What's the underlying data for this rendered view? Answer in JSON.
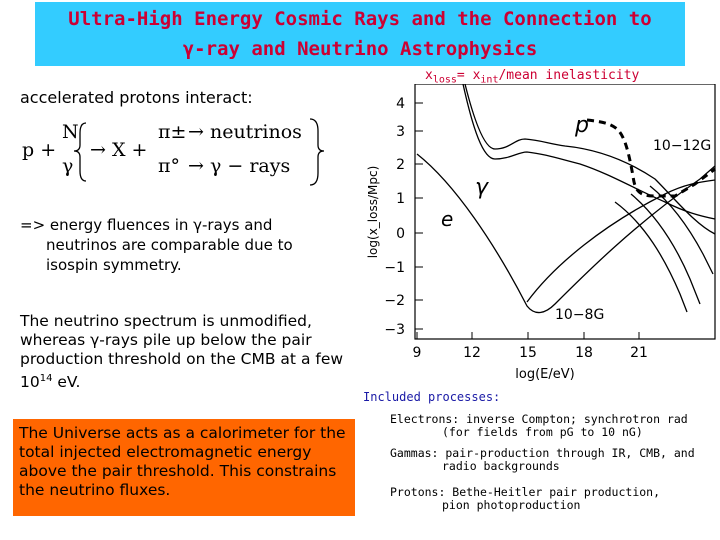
{
  "title": {
    "line1": "Ultra-High Energy Cosmic Rays and the Connection to",
    "line2": "γ-ray and Neutrino Astrophysics",
    "color": "#cc0033",
    "background": "#33ccff"
  },
  "left": {
    "intro": "accelerated protons interact:",
    "reaction": {
      "p": "p +",
      "N": "N",
      "gamma": "γ",
      "X": "→ X +",
      "pi_pm": "π±",
      "pi_0": "π°",
      "neutrinos": "→ neutrinos",
      "grays": "→ γ − rays"
    },
    "isospin_line1": "=> energy fluences in γ-rays and",
    "isospin_line2": "neutrinos are comparable due to",
    "isospin_line3": "isospin symmetry.",
    "spectrum_text": "The neutrino spectrum is unmodified, whereas γ-rays pile up below the pair production threshold on the CMB at a few 10",
    "spectrum_exp": "14",
    "spectrum_tail": " eV.",
    "calorimeter_text": "The Universe acts as a calorimeter for the total injected electromagnetic energy above the pair threshold. This constrains the neutrino fluxes.",
    "calorimeter_bg": "#ff6600"
  },
  "plot": {
    "header_x": "x",
    "header_loss": "loss",
    "header_eq": "= x",
    "header_int": "int",
    "header_rest": "/mean inelasticity",
    "ylabel": "log(x_loss/Mpc)",
    "xlabel": "log(E/eV)",
    "yticks": [
      "4",
      "3",
      "2",
      "1",
      "0",
      "−1",
      "−2",
      "−3"
    ],
    "xticks": [
      "9",
      "12",
      "15",
      "18",
      "21"
    ],
    "label_p": "p",
    "label_gamma": "γ",
    "label_e": "e",
    "label_high_field": "10−12G",
    "label_low_field": "10−8G"
  },
  "processes": {
    "header": "Included processes:",
    "electrons_1": "Electrons: inverse Compton; synchrotron rad",
    "electrons_2": "(for fields from pG to 10 nG)",
    "gammas_1": "Gammas: pair-production through IR, CMB, and",
    "gammas_2": "radio backgrounds",
    "protons_1": "Protons: Bethe-Heitler pair production,",
    "protons_2": "pion photoproduction"
  }
}
